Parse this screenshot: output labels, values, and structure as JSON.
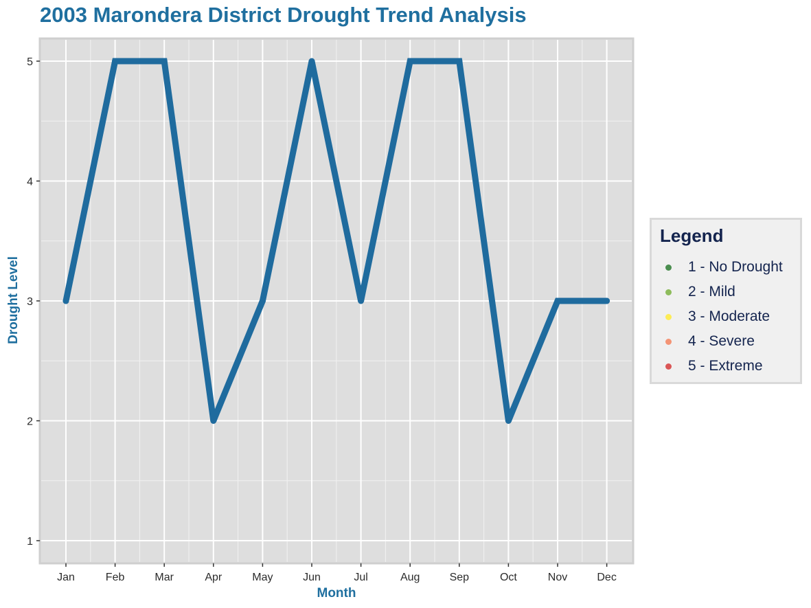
{
  "chart_data": {
    "type": "line",
    "title": "2003 Marondera District Drought Trend Analysis",
    "xlabel": "Month",
    "ylabel": "Drought Level",
    "categories": [
      "Jan",
      "Feb",
      "Mar",
      "Apr",
      "May",
      "Jun",
      "Jul",
      "Aug",
      "Sep",
      "Oct",
      "Nov",
      "Dec"
    ],
    "values": [
      3,
      5,
      5,
      2,
      3,
      5,
      3,
      5,
      5,
      2,
      3,
      3
    ],
    "ylim": [
      1,
      5
    ],
    "yticks": [
      "1",
      "2",
      "3",
      "4",
      "5"
    ],
    "grid": true,
    "line_color": "#1f6b9e",
    "panel_color": "#dedede",
    "legend": {
      "title": "Legend",
      "placement": "right",
      "items": [
        {
          "label": "1 - No Drought",
          "color": "#2e7d32"
        },
        {
          "label": "2 - Mild",
          "color": "#7cb342"
        },
        {
          "label": "3 - Moderate",
          "color": "#ffeb3b"
        },
        {
          "label": "4 - Severe",
          "color": "#f4845f"
        },
        {
          "label": "5 - Extreme",
          "color": "#d63b3b"
        }
      ]
    }
  }
}
